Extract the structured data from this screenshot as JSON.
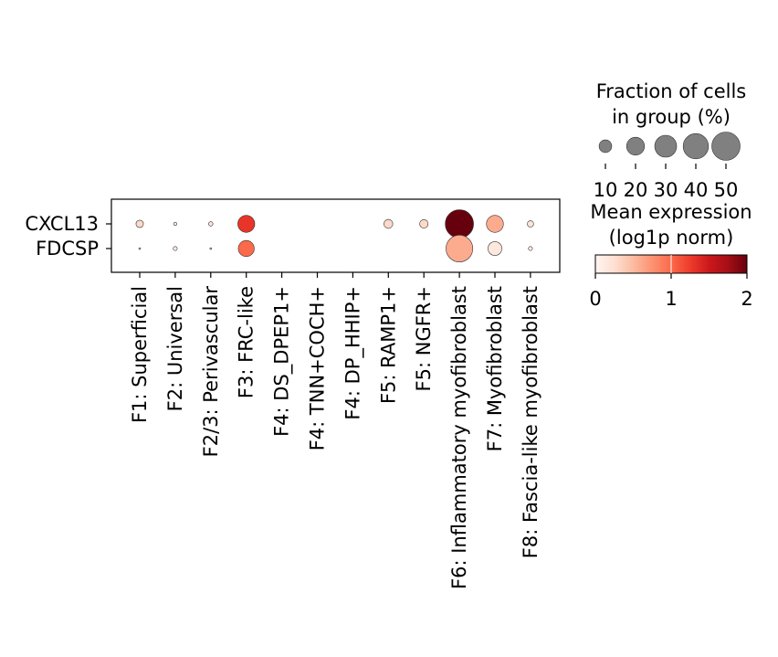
{
  "chart_data": {
    "type": "dotplot",
    "genes": [
      "CXCL13",
      "FDCSP"
    ],
    "groups": [
      "F1: Superficial",
      "F2: Universal",
      "F2/3: Perivascular",
      "F3: FRC-like",
      "F4: DS_DPEP1+",
      "F4: TNN+COCH+",
      "F4: DP_HHIP+",
      "F5: RAMP1+",
      "F5: NGFR+",
      "F6: Inflammatory myofibroblast",
      "F7: Myofibroblast",
      "F8: Fascia-like myofibroblast"
    ],
    "fraction_pct": [
      [
        3.5,
        0.7,
        1.2,
        18,
        0,
        0,
        0,
        5,
        4.5,
        50,
        18,
        2.5
      ],
      [
        0.2,
        1.0,
        0.2,
        16,
        0,
        0,
        0,
        0,
        0,
        45,
        12,
        1.0
      ]
    ],
    "mean_expression": [
      [
        0.3,
        0.1,
        0.2,
        1.3,
        0,
        0,
        0,
        0.3,
        0.3,
        2.0,
        0.6,
        0.2
      ],
      [
        0.05,
        0.1,
        0.05,
        1.0,
        0,
        0,
        0,
        0,
        0,
        0.6,
        0.15,
        0.1
      ]
    ],
    "size_legend": {
      "title": [
        "Fraction of cells",
        "in group (%)"
      ],
      "values": [
        10,
        20,
        30,
        40,
        50
      ],
      "tick_labels": [
        "10",
        "20",
        "30",
        "40",
        "50"
      ]
    },
    "color_legend": {
      "title": [
        "Mean expression",
        "(log1p norm)"
      ],
      "range": [
        0,
        2
      ],
      "tick_values": [
        0,
        1,
        2
      ],
      "tick_labels": [
        "0",
        "1",
        "2"
      ],
      "colormap": "Reds"
    },
    "colors": {
      "dot_outline": "#333333",
      "size_legend_dot": "#808080"
    }
  }
}
